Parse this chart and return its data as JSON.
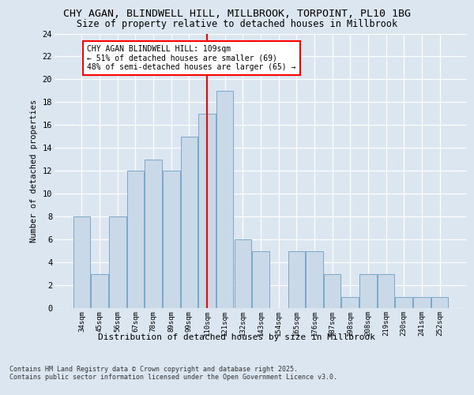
{
  "title1": "CHY AGAN, BLINDWELL HILL, MILLBROOK, TORPOINT, PL10 1BG",
  "title2": "Size of property relative to detached houses in Millbrook",
  "xlabel": "Distribution of detached houses by size in Millbrook",
  "ylabel": "Number of detached properties",
  "categories": [
    "34sqm",
    "45sqm",
    "56sqm",
    "67sqm",
    "78sqm",
    "89sqm",
    "99sqm",
    "110sqm",
    "121sqm",
    "132sqm",
    "143sqm",
    "154sqm",
    "165sqm",
    "176sqm",
    "187sqm",
    "198sqm",
    "208sqm",
    "219sqm",
    "230sqm",
    "241sqm",
    "252sqm"
  ],
  "values": [
    8,
    3,
    8,
    12,
    13,
    12,
    15,
    17,
    19,
    6,
    5,
    0,
    5,
    5,
    3,
    1,
    3,
    3,
    1,
    1,
    1
  ],
  "bar_color": "#c9d9e8",
  "bar_edge_color": "#7aa8c8",
  "vline_index": 7,
  "vline_color": "red",
  "annotation_title": "CHY AGAN BLINDWELL HILL: 109sqm",
  "annotation_line2": "← 51% of detached houses are smaller (69)",
  "annotation_line3": "48% of semi-detached houses are larger (65) →",
  "ylim": [
    0,
    24
  ],
  "yticks": [
    0,
    2,
    4,
    6,
    8,
    10,
    12,
    14,
    16,
    18,
    20,
    22,
    24
  ],
  "bg_color": "#dce6f0",
  "plot_bg_color": "#dce6f0",
  "footer": "Contains HM Land Registry data © Crown copyright and database right 2025.\nContains public sector information licensed under the Open Government Licence v3.0."
}
